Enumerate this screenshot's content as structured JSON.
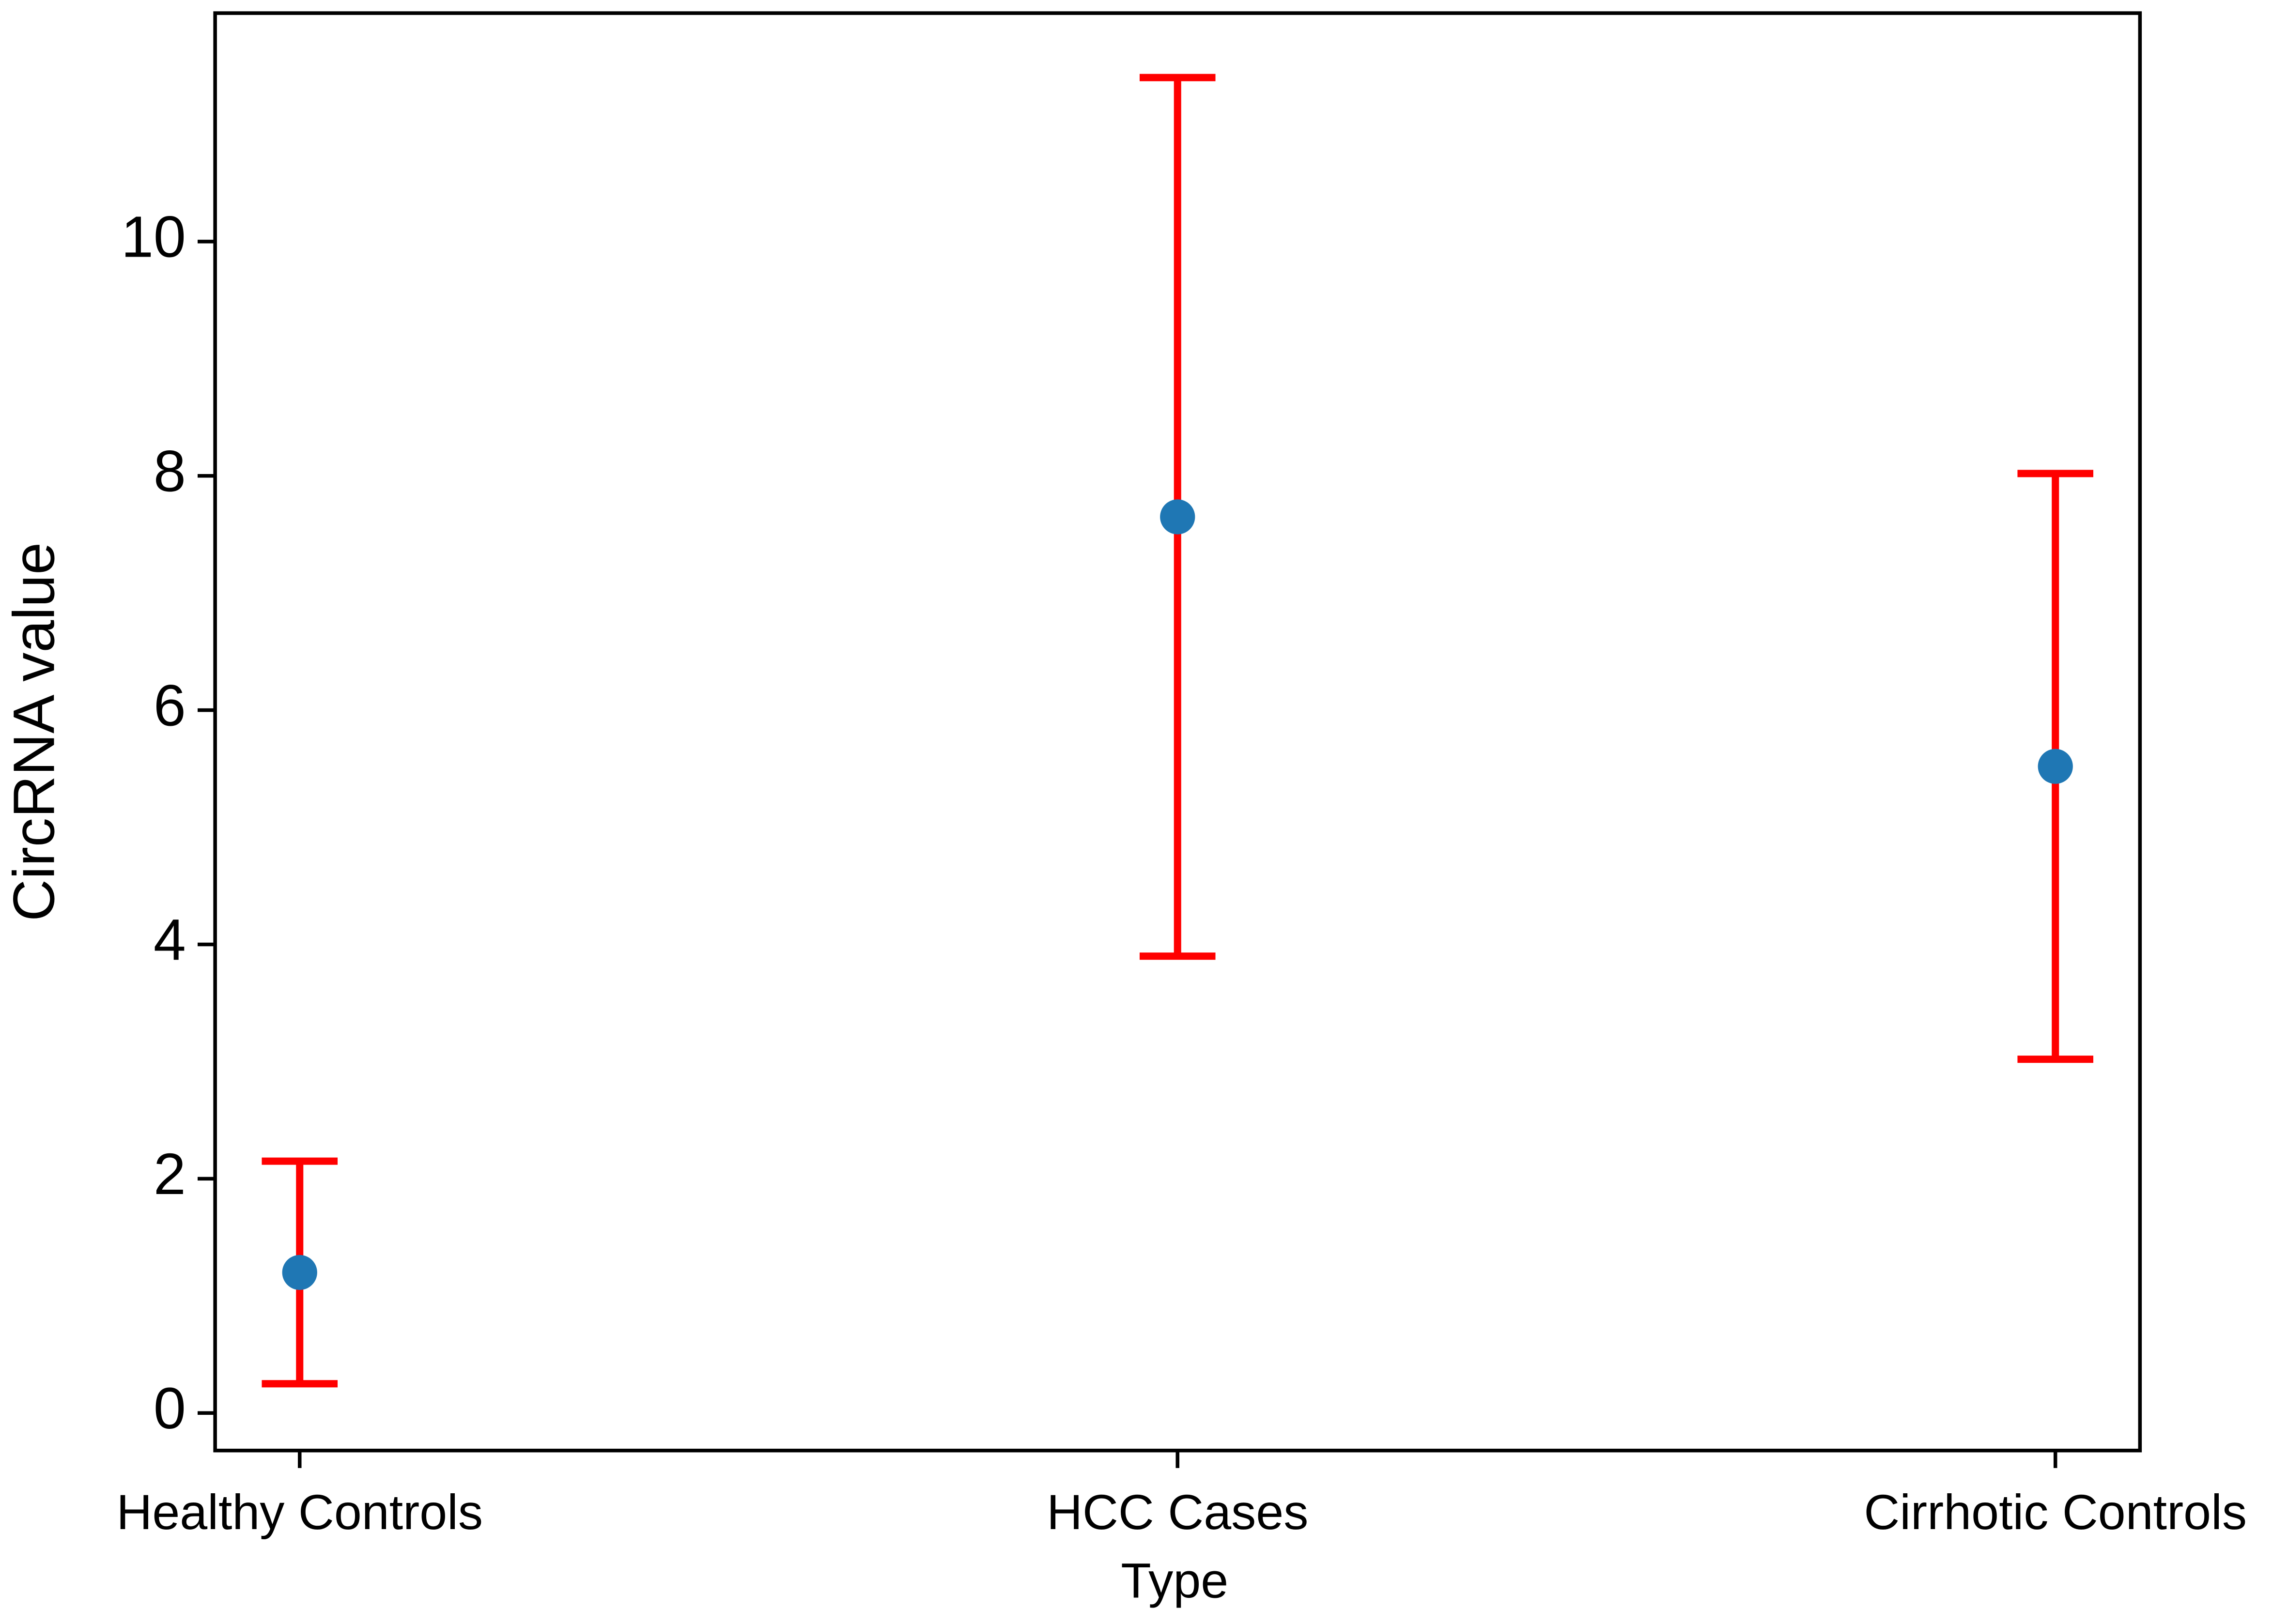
{
  "chart_data": {
    "type": "errorbar",
    "x_label": "Type",
    "y_label": "CircRNA value",
    "categories": [
      "Healthy Controls",
      "HCC Cases",
      "Cirrhotic Controls"
    ],
    "values": [
      1.2,
      7.65,
      5.52
    ],
    "errors": [
      0.95,
      3.75,
      2.5
    ],
    "color": "#1f77b4",
    "error_color": "#ff0000",
    "ylim": [
      -0.32,
      11.95
    ],
    "yticks": [
      0,
      2,
      4,
      6,
      8,
      10
    ]
  }
}
